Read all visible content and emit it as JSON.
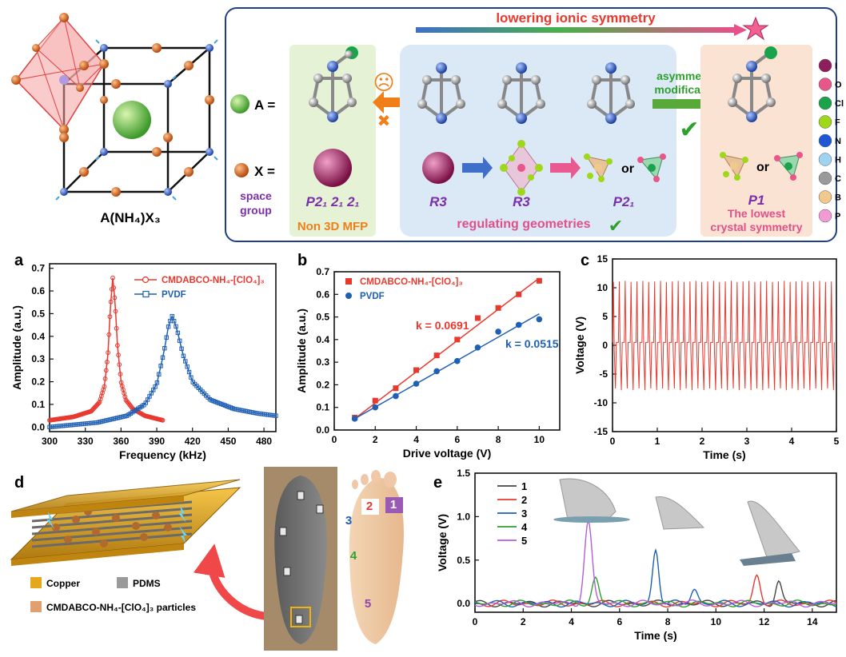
{
  "top": {
    "formula": "A(NH₄)X₃",
    "A_label": "A =",
    "X_label": "X =",
    "space_group_label": "space group",
    "arrow_title": "lowering ionic symmetry",
    "non3d_label": "Non 3D MFP",
    "sg_p212121": "P2₁ 2₁ 2₁",
    "sg_r3a": "R3",
    "sg_r3b": "R3",
    "sg_p21": "P2₁",
    "sg_p1": "P1",
    "or1": "or",
    "or2": "or",
    "regulating": "regulating geometries",
    "asym1": "asymmetric",
    "asym2": "modification",
    "lowest1": "The lowest",
    "lowest2": "crystal symmetry",
    "sad_glyph": "☹",
    "cross_glyph": "✖",
    "check_glyph": "✔",
    "colors": {
      "red": "#e8392f",
      "orange": "#f07f1a",
      "purple": "#7b2fa8",
      "pink": "#e0508a",
      "green": "#2ea02e",
      "blue": "#1f5fb4"
    },
    "legend": [
      {
        "el": "I",
        "color": "#8e1d5c"
      },
      {
        "el": "O",
        "color": "#e8568a"
      },
      {
        "el": "Cl",
        "color": "#1aa34a"
      },
      {
        "el": "F",
        "color": "#9fd81a"
      },
      {
        "el": "N",
        "color": "#1e57d6"
      },
      {
        "el": "H",
        "color": "#9fd3f2"
      },
      {
        "el": "C",
        "color": "#9a9a9a"
      },
      {
        "el": "B",
        "color": "#f2c98c"
      },
      {
        "el": "P",
        "color": "#f29ad4"
      }
    ]
  },
  "panel_labels": {
    "a": "a",
    "b": "b",
    "c": "c",
    "d": "d",
    "e": "e"
  },
  "chart_data": [
    {
      "id": "a",
      "type": "line",
      "xlabel": "Frequency (kHz)",
      "ylabel": "Amplitude (a.u.)",
      "xlim": [
        300,
        490
      ],
      "ylim": [
        -0.02,
        0.72
      ],
      "xticks": [
        "300",
        "330",
        "360",
        "390",
        "420",
        "450",
        "480"
      ],
      "yticks": [
        "0.0",
        "0.1",
        "0.2",
        "0.3",
        "0.4",
        "0.5",
        "0.6",
        "0.7"
      ],
      "series": [
        {
          "name": "CMDABCO-NH₄-[ClO₄]₃",
          "color": "#e8392f",
          "marker": "circle",
          "x": [
            300,
            320,
            335,
            342,
            346,
            349,
            351,
            353,
            355,
            357,
            360,
            364,
            370,
            380,
            395
          ],
          "y": [
            0.03,
            0.045,
            0.07,
            0.11,
            0.18,
            0.32,
            0.52,
            0.66,
            0.55,
            0.36,
            0.2,
            0.12,
            0.08,
            0.05,
            0.03
          ]
        },
        {
          "name": "PVDF",
          "color": "#1f5fb4",
          "marker": "square",
          "x": [
            300,
            340,
            365,
            380,
            390,
            396,
            400,
            403,
            407,
            412,
            420,
            435,
            455,
            475,
            490
          ],
          "y": [
            0.0,
            0.02,
            0.05,
            0.1,
            0.19,
            0.33,
            0.45,
            0.49,
            0.43,
            0.32,
            0.2,
            0.12,
            0.08,
            0.06,
            0.05
          ]
        }
      ]
    },
    {
      "id": "b",
      "type": "scatter",
      "xlabel": "Drive voltage (V)",
      "ylabel": "Amplitude (a.u.)",
      "xlim": [
        0,
        11
      ],
      "ylim": [
        0.0,
        0.7
      ],
      "xticks": [
        "0",
        "2",
        "4",
        "6",
        "8",
        "10"
      ],
      "yticks": [
        "0.0",
        "0.1",
        "0.2",
        "0.3",
        "0.4",
        "0.5",
        "0.6",
        "0.7"
      ],
      "series": [
        {
          "name": "CMDABCO-NH₄-[ClO₄]₃",
          "color": "#e8392f",
          "marker": "square",
          "x": [
            1,
            2,
            3,
            4,
            5,
            6,
            7,
            8,
            9,
            10
          ],
          "y": [
            0.055,
            0.13,
            0.185,
            0.265,
            0.33,
            0.4,
            0.495,
            0.54,
            0.6,
            0.66
          ],
          "fit": {
            "k": "k = 0.0691",
            "x0": 1,
            "y0": 0.05,
            "x1": 10,
            "y1": 0.672
          }
        },
        {
          "name": "PVDF",
          "color": "#1f5fb4",
          "marker": "circle",
          "x": [
            1,
            2,
            3,
            4,
            5,
            6,
            7,
            8,
            9,
            10
          ],
          "y": [
            0.05,
            0.1,
            0.15,
            0.205,
            0.26,
            0.305,
            0.365,
            0.435,
            0.465,
            0.49
          ],
          "fit": {
            "k": "k = 0.0515",
            "x0": 1,
            "y0": 0.05,
            "x1": 10,
            "y1": 0.514
          }
        }
      ]
    },
    {
      "id": "c",
      "type": "line",
      "xlabel": "Time (s)",
      "ylabel": "Voltage (V)",
      "xlim": [
        0,
        5
      ],
      "ylim": [
        -15,
        15
      ],
      "xticks": [
        "0",
        "1",
        "2",
        "3",
        "4",
        "5"
      ],
      "yticks": [
        "-15",
        "-10",
        "-5",
        "0",
        "5",
        "10",
        "15"
      ],
      "signal": {
        "color": "#e8392f",
        "cycles": 38,
        "max": 11,
        "min": -7.5
      }
    },
    {
      "id": "e",
      "type": "line",
      "xlabel": "Time (s)",
      "ylabel": "Voltage (V)",
      "xlim": [
        0,
        15
      ],
      "ylim": [
        -0.1,
        1.5
      ],
      "xticks": [
        "0",
        "2",
        "4",
        "6",
        "8",
        "10",
        "12",
        "14"
      ],
      "yticks": [
        "0.0",
        "0.5",
        "1.0",
        "1.5"
      ],
      "series": [
        {
          "name": "1",
          "color": "#444444",
          "peaks": [
            [
              12.6,
              0.27,
              0.18
            ]
          ]
        },
        {
          "name": "2",
          "color": "#e8392f",
          "peaks": [
            [
              11.7,
              0.33,
              0.2
            ]
          ]
        },
        {
          "name": "3",
          "color": "#1f5fb4",
          "peaks": [
            [
              7.5,
              0.63,
              0.18
            ],
            [
              9.1,
              0.18,
              0.2
            ]
          ]
        },
        {
          "name": "4",
          "color": "#2ea02e",
          "peaks": [
            [
              5.0,
              0.3,
              0.2
            ]
          ]
        },
        {
          "name": "5",
          "color": "#b25fd9",
          "peaks": [
            [
              4.7,
              0.94,
              0.22
            ]
          ]
        }
      ]
    }
  ],
  "panel_d": {
    "legend": [
      "Copper",
      "PDMS",
      "CMDABCO-NH₄-[ClO₄]₃ particles"
    ],
    "colors": {
      "copper": "#e5a81c",
      "pdms": "#9a9a9a",
      "particle": "#e0a070"
    },
    "foot_numbers": [
      "1",
      "2",
      "3",
      "4",
      "5"
    ],
    "foot_colors": [
      "#9b59b6",
      "#e8392f",
      "#1f5fb4",
      "#2ea02e",
      "#8e44ad"
    ]
  }
}
